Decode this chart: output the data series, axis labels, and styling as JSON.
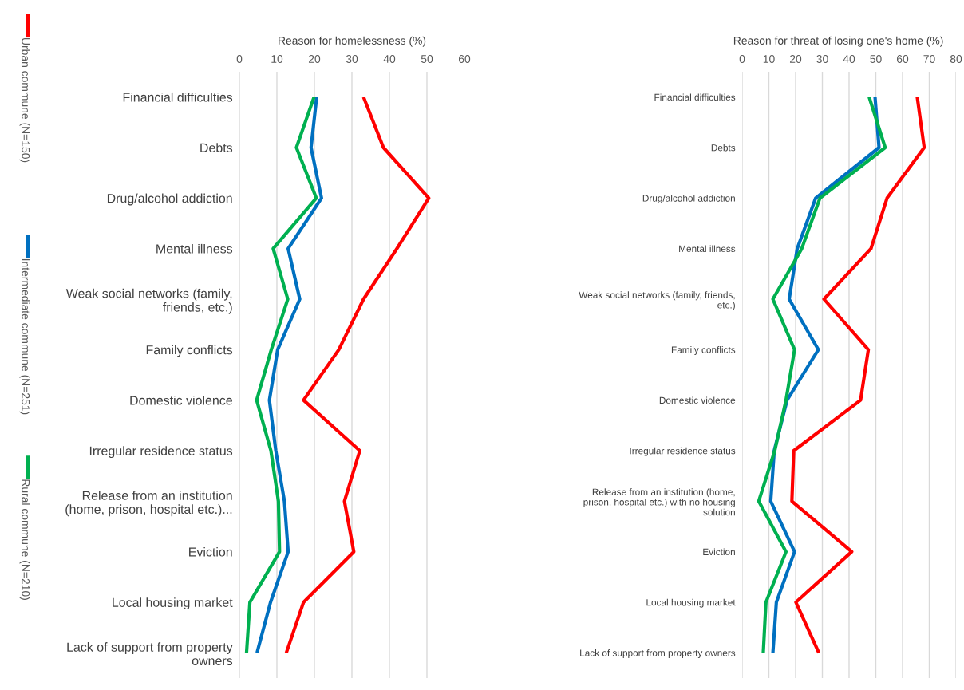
{
  "chart_data": [
    {
      "type": "line",
      "orientation": "horizontal",
      "xlabel": "Reason for homelessness (%)",
      "xlim": [
        0,
        60
      ],
      "xticks": [
        0,
        10,
        20,
        30,
        40,
        50,
        60
      ],
      "grid": "x",
      "legend": "left",
      "marker": "none",
      "line_style": "solid",
      "categories": [
        "Financial difficulties",
        "Debts",
        "Drug/alcohol addiction",
        "Mental illness",
        "Weak social networks (family,\nfriends, etc.)",
        "Family conflicts",
        "Domestic violence",
        "Irregular residence status",
        "Release from an institution\n(home, prison, hospital etc.)...",
        "Eviction",
        "Local housing market",
        "Lack of support from property\nowners"
      ],
      "series": [
        {
          "name": "Urban commune (N=150)",
          "color": "#ff0000",
          "values": [
            33.1,
            38.4,
            50.5,
            42,
            33.1,
            26.5,
            17.1,
            32.1,
            28.0,
            30.5,
            17.1,
            12.5
          ]
        },
        {
          "name": "Intermediate commune (N=251)",
          "color": "#0070c0",
          "values": [
            20.6,
            19.1,
            21.9,
            13.0,
            16.1,
            10.2,
            8.0,
            9.7,
            12.0,
            13.0,
            8.3,
            4.7
          ]
        },
        {
          "name": "Rural commune (N=210)",
          "color": "#00b050",
          "values": [
            19.9,
            15.2,
            20.5,
            9.0,
            12.9,
            8.5,
            4.6,
            8.4,
            10.4,
            10.7,
            2.8,
            1.9
          ]
        }
      ]
    },
    {
      "type": "line",
      "orientation": "horizontal",
      "xlabel": "Reason for threat of losing one's home (%)",
      "xlim": [
        0,
        80
      ],
      "xticks": [
        0,
        10,
        20,
        30,
        40,
        50,
        60,
        70,
        80
      ],
      "grid": "x",
      "marker": "none",
      "line_style": "solid",
      "categories": [
        "Financial difficulties",
        "Debts",
        "Drug/alcohol addiction",
        "Mental illness",
        "Weak social networks (family, friends,\netc.)",
        "Family conflicts",
        "Domestic violence",
        "Irregular residence status",
        "Release from an institution (home,\nprison, hospital etc.) with no housing\nsolution",
        "Eviction",
        "Local housing market",
        "Lack of support from property owners"
      ],
      "series": [
        {
          "color": "#ff0000",
          "values": [
            65.5,
            68.1,
            54.2,
            48.2,
            30.6,
            47.2,
            44.3,
            19.3,
            18.6,
            41.0,
            20.1,
            28.7
          ]
        },
        {
          "color": "#0070c0",
          "values": [
            49.7,
            51.2,
            27.5,
            20.6,
            17.6,
            28.5,
            16.8,
            12.0,
            10.7,
            19.6,
            12.8,
            11.5
          ]
        },
        {
          "color": "#00b050",
          "values": [
            47.5,
            53.5,
            29.1,
            22.3,
            11.5,
            19.6,
            16.4,
            12.2,
            6.2,
            16.4,
            8.9,
            7.9
          ]
        }
      ]
    }
  ]
}
